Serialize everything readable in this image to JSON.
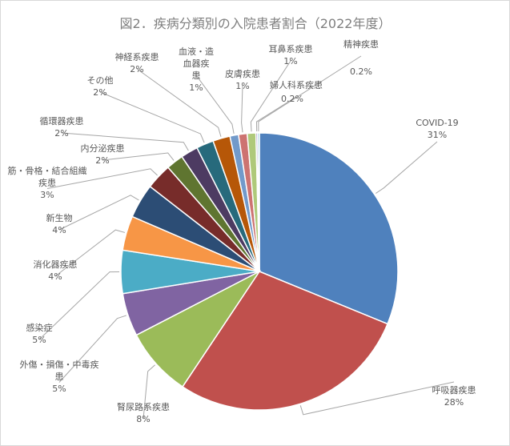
{
  "chart_data": {
    "type": "pie",
    "title": "図2．疾病分類別の入院患者割合（2022年度）",
    "slices": [
      {
        "name": "COVID-19",
        "value": 31,
        "label": "31%",
        "color": "#4f81bd"
      },
      {
        "name": "呼吸器疾患",
        "value": 28,
        "label": "28%",
        "color": "#c0504d"
      },
      {
        "name": "腎尿路系疾患",
        "value": 8,
        "label": "8%",
        "color": "#9bbb59"
      },
      {
        "name": "外傷・損傷・中毒疾患",
        "value": 5,
        "label": "5%",
        "color": "#8064a2"
      },
      {
        "name": "感染症",
        "value": 5,
        "label": "5%",
        "color": "#4bacc6"
      },
      {
        "name": "消化器疾患",
        "value": 4,
        "label": "4%",
        "color": "#f79646"
      },
      {
        "name": "新生物",
        "value": 4,
        "label": "4%",
        "color": "#2c4d75"
      },
      {
        "name": "筋・骨格・結合組織疾患",
        "value": 3,
        "label": "3%",
        "color": "#772c2a"
      },
      {
        "name": "内分泌疾患",
        "value": 2,
        "label": "2%",
        "color": "#5f7530"
      },
      {
        "name": "循環器疾患",
        "value": 2,
        "label": "2%",
        "color": "#4d3b62"
      },
      {
        "name": "その他",
        "value": 2,
        "label": "2%",
        "color": "#276a7c"
      },
      {
        "name": "神経系疾患",
        "value": 2,
        "label": "2%",
        "color": "#b65708"
      },
      {
        "name": "血液・造血器疾患",
        "value": 1,
        "label": "1%",
        "color": "#729aca"
      },
      {
        "name": "皮膚疾患",
        "value": 1,
        "label": "1%",
        "color": "#cd7371"
      },
      {
        "name": "耳鼻系疾患",
        "value": 1,
        "label": "1%",
        "color": "#afc97a"
      },
      {
        "name": "婦人科系疾患",
        "value": 0.2,
        "label": "0.2%",
        "color": "#9983b5"
      },
      {
        "name": "精神疾患",
        "value": 0.2,
        "label": "0.2%",
        "color": "#6fbdd1"
      }
    ]
  }
}
